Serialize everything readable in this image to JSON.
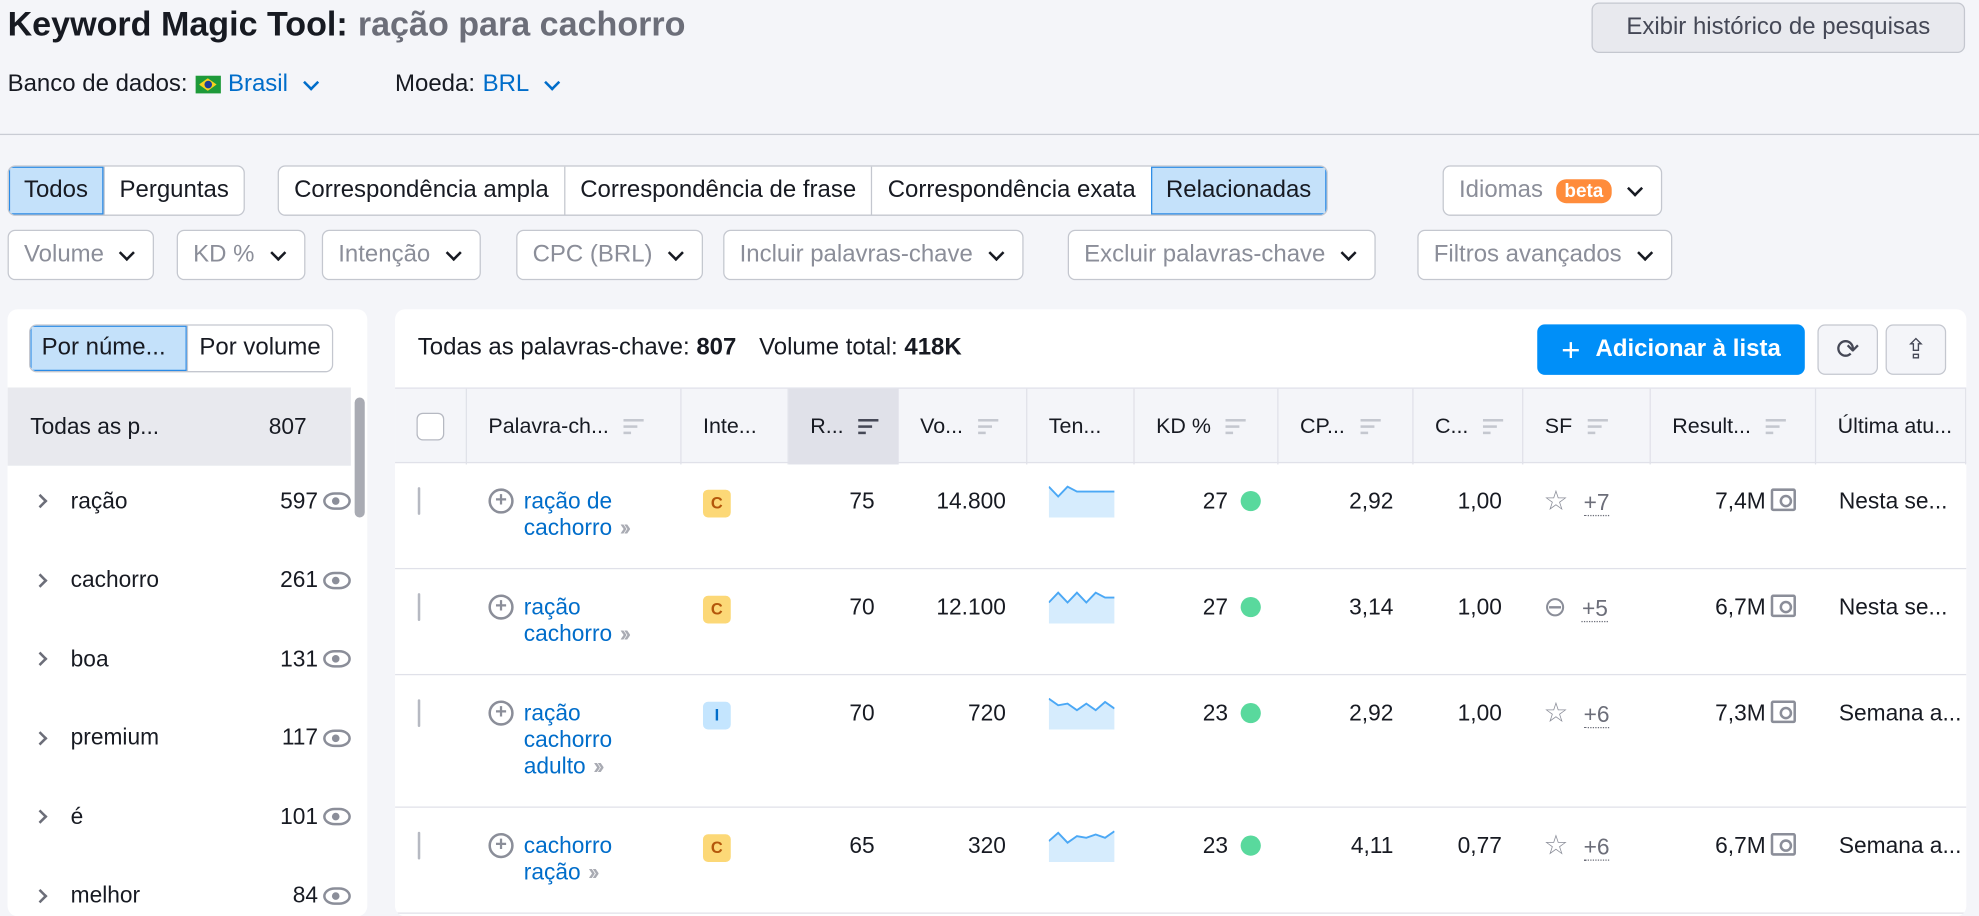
{
  "header": {
    "title": "Keyword Magic Tool:",
    "query": "ração para cachorro",
    "history_button": "Exibir histórico de pesquisas",
    "database_label": "Banco de dados:",
    "database_value": "Brasil",
    "currency_label": "Moeda:",
    "currency_value": "BRL"
  },
  "tabs": {
    "group1": [
      "Todos",
      "Perguntas"
    ],
    "group2": [
      "Correspondência ampla",
      "Correspondência de frase",
      "Correspondência exata",
      "Relacionadas"
    ],
    "languages": "Idiomas",
    "beta": "beta",
    "active": [
      "Todos",
      "Relacionadas"
    ]
  },
  "filters": [
    "Volume",
    "KD %",
    "Intenção",
    "CPC (BRL)",
    "Incluir palavras-chave",
    "Excluir palavras-chave",
    "Filtros avançados"
  ],
  "sidebar": {
    "toggle": [
      "Por núme...",
      "Por volume"
    ],
    "all_label": "Todas as p...",
    "all_count": "807",
    "groups": [
      {
        "label": "ração",
        "count": "597"
      },
      {
        "label": "cachorro",
        "count": "261"
      },
      {
        "label": "boa",
        "count": "131"
      },
      {
        "label": "premium",
        "count": "117"
      },
      {
        "label": "é",
        "count": "101"
      },
      {
        "label": "melhor",
        "count": "84"
      }
    ]
  },
  "summary": {
    "all_label": "Todas as palavras-chave:",
    "all_count": "807",
    "volume_label": "Volume total:",
    "volume_value": "418K",
    "add_button": "Adicionar à lista"
  },
  "table": {
    "columns": [
      "Palavra-ch...",
      "Inte...",
      "R...",
      "Vo...",
      "Ten...",
      "KD %",
      "CP...",
      "C...",
      "SF",
      "Result...",
      "Última atu..."
    ],
    "rows": [
      {
        "keyword": "ração de cachorro",
        "intent": "C",
        "r": "75",
        "volume": "14.800",
        "trend": [
          0.9,
          0.6,
          0.9,
          0.75,
          0.75,
          0.75,
          0.75,
          0.75
        ],
        "kd": "27",
        "cpc": "2,92",
        "com": "1,00",
        "sf_icon": "star-icon",
        "sf_more": "+7",
        "results": "7,4M",
        "updated": "Nesta se..."
      },
      {
        "keyword": "ração cachorro",
        "intent": "C",
        "r": "70",
        "volume": "12.100",
        "trend": [
          0.6,
          0.9,
          0.6,
          0.9,
          0.6,
          0.9,
          0.75,
          0.75
        ],
        "kd": "27",
        "cpc": "3,14",
        "com": "1,00",
        "sf_icon": "link-icon",
        "sf_more": "+5",
        "results": "6,7M",
        "updated": "Nesta se..."
      },
      {
        "keyword": "ração cachorro adulto",
        "intent": "I",
        "r": "70",
        "volume": "720",
        "trend": [
          0.9,
          0.7,
          0.75,
          0.55,
          0.75,
          0.55,
          0.8,
          0.6
        ],
        "kd": "23",
        "cpc": "2,92",
        "com": "1,00",
        "sf_icon": "star-icon",
        "sf_more": "+6",
        "results": "7,3M",
        "updated": "Semana a..."
      },
      {
        "keyword": "cachorro ração",
        "intent": "C",
        "r": "65",
        "volume": "320",
        "trend": [
          0.6,
          0.85,
          0.55,
          0.75,
          0.7,
          0.8,
          0.7,
          0.9
        ],
        "kd": "23",
        "cpc": "4,11",
        "com": "0,77",
        "sf_icon": "star-icon",
        "sf_more": "+6",
        "results": "6,7M",
        "updated": "Semana a..."
      }
    ]
  },
  "colors": {
    "accent": "#008ff8",
    "link": "#006dca",
    "kd_dot": "#59d99d",
    "beta": "#ff8c3b",
    "intent_c": "#fcd877",
    "intent_i": "#c4e5fe"
  }
}
